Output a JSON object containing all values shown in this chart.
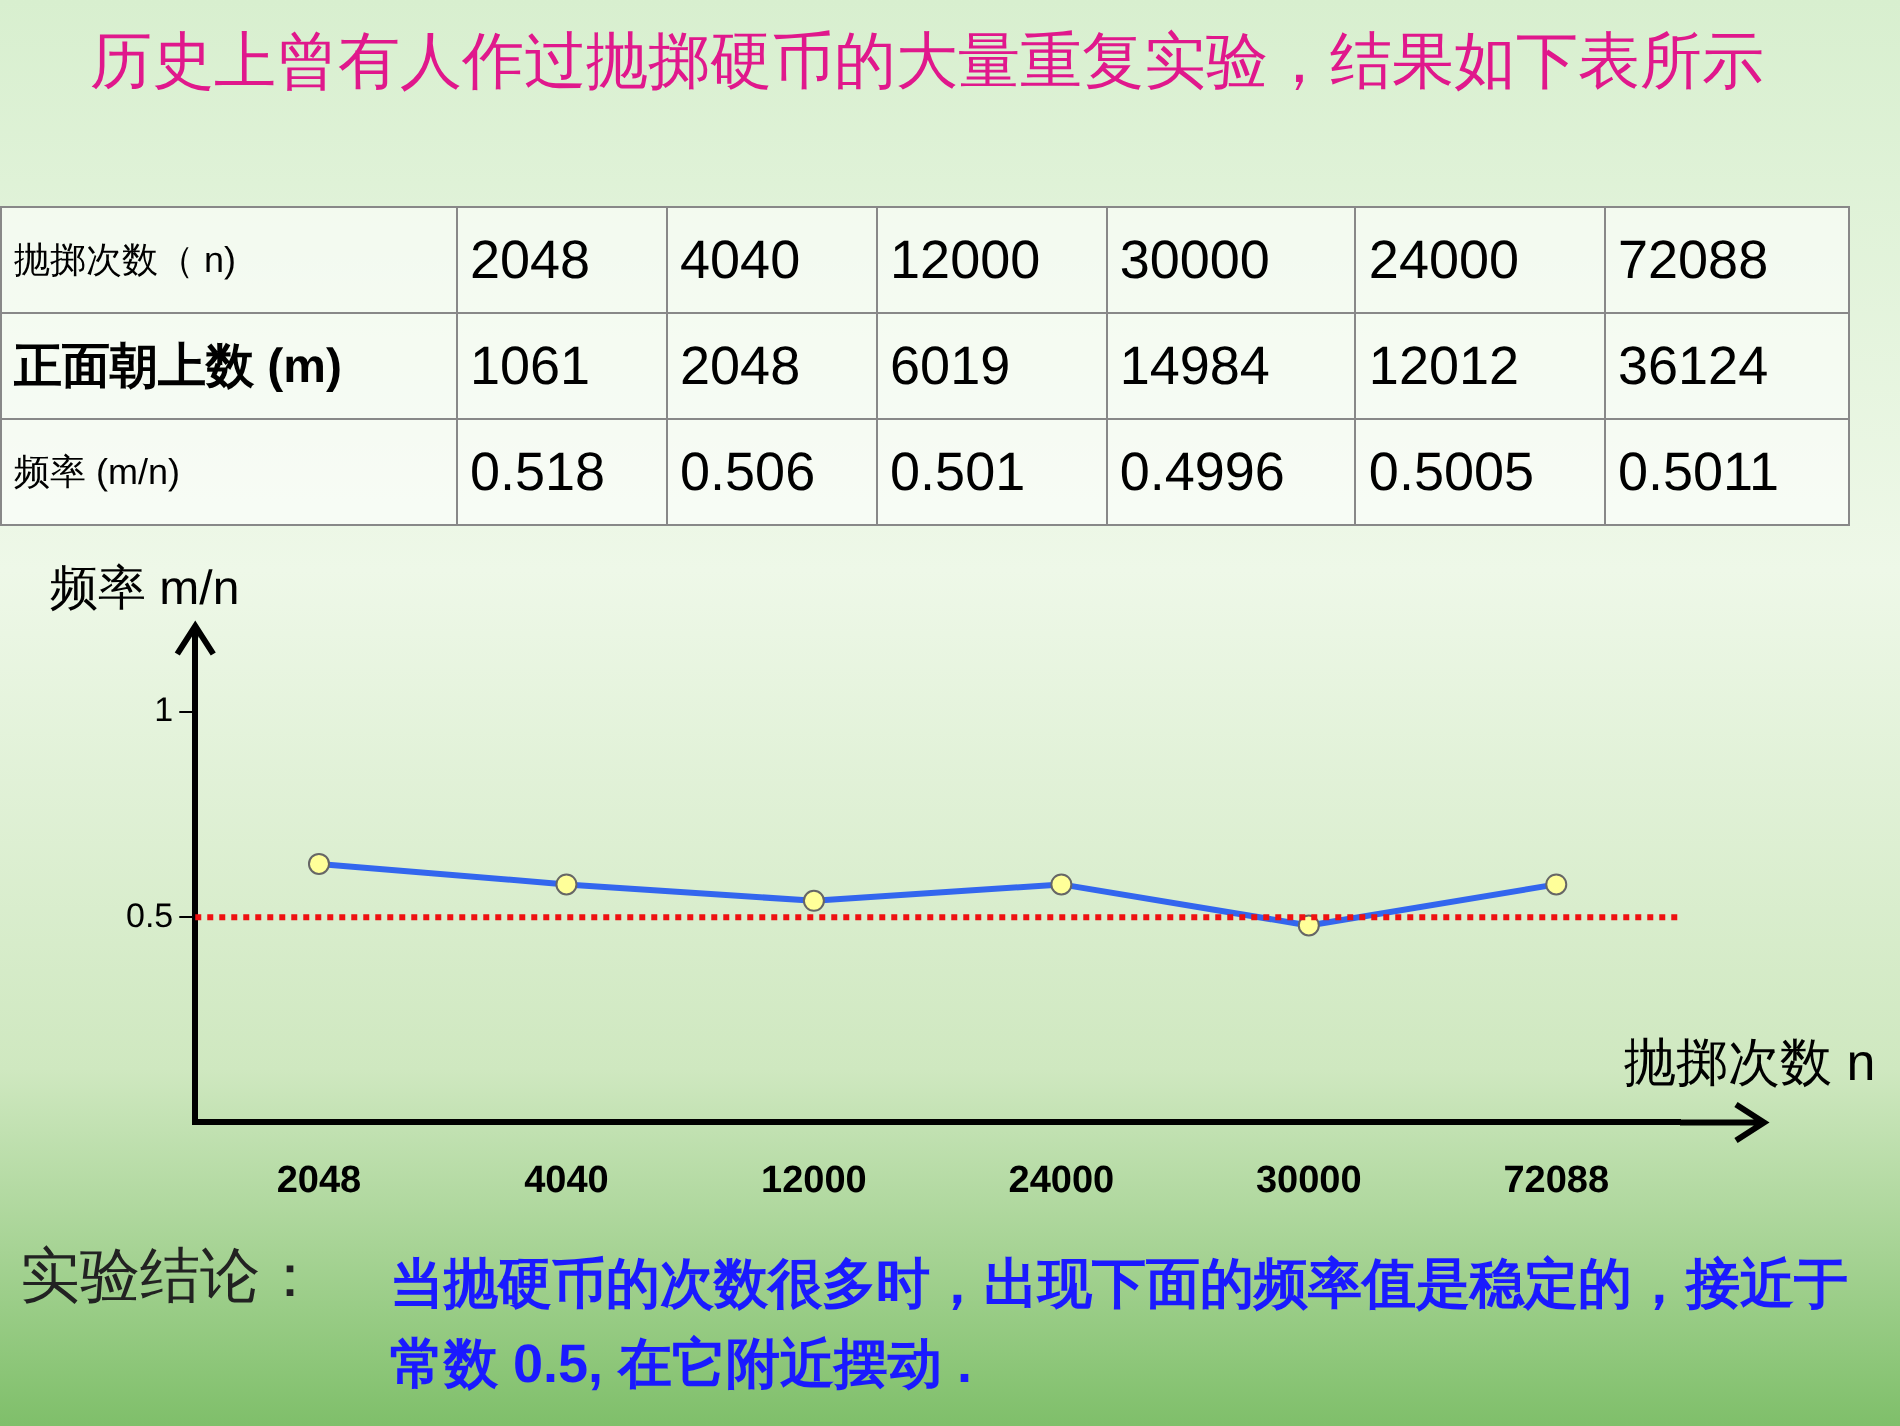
{
  "chart_data": {
    "type": "line",
    "title": "历史上曾有人作过抛掷硬币的大量重复实验，结果如下表所示",
    "ylabel": "频率 m/n",
    "xlabel": "抛掷次数 n",
    "categories": [
      "2048",
      "4040",
      "12000",
      "24000",
      "30000",
      "72088"
    ],
    "series": [
      {
        "color": "#3366ee",
        "values": [
          0.63,
          0.58,
          0.54,
          0.58,
          0.48,
          0.58
        ]
      }
    ],
    "ylim": [
      0,
      1.2
    ],
    "yticks": [
      0.5,
      1
    ],
    "grid": false,
    "legend": false,
    "marker": "circle",
    "line_style": "solid",
    "ref_lines": [
      {
        "axis": "y",
        "value": 0.5,
        "color": "#ee1111",
        "line_style": "dotted"
      }
    ],
    "annotations": [
      "抛掷次数（ n)",
      "2048",
      "4040",
      "12000",
      "30000",
      "24000",
      "72088",
      "正面朝上数 (m)",
      "1061",
      "2048",
      "6019",
      "14984",
      "12012",
      "36124",
      "频率 (m/n)",
      "0.518",
      "0.506",
      "0.501",
      "0.4996",
      "0.5005",
      "0.5011",
      "实验结论：",
      "当抛硬币的次数很多时，出现下面的频率值是稳定的，接近于常数 0.5, 在它附近摆动 ."
    ]
  }
}
